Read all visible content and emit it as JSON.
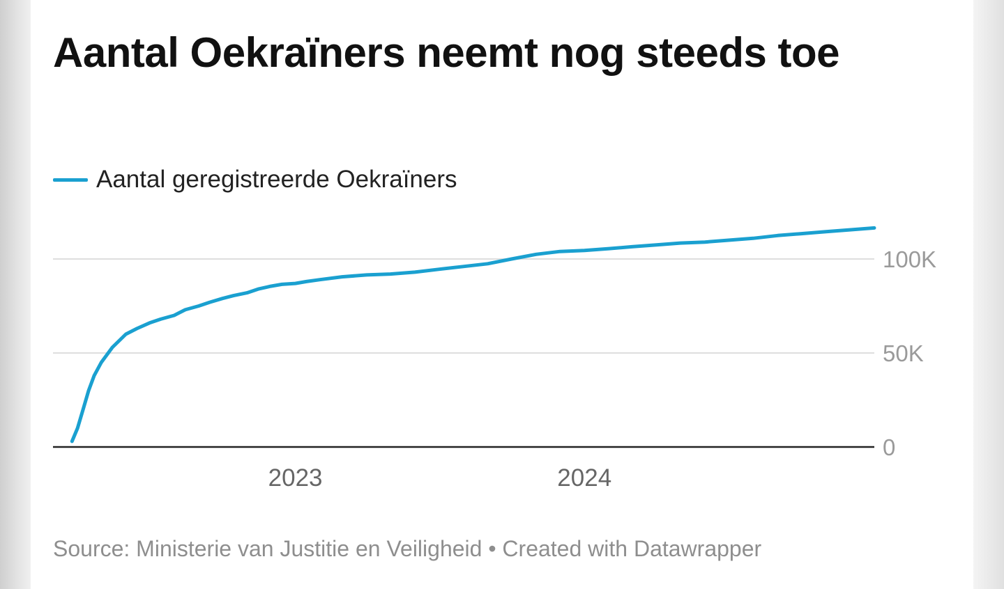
{
  "chart_data": {
    "type": "line",
    "title": "Aantal Oekraïners neemt nog steeds toe",
    "legend": [
      "Aantal geregistreerde Oekraïners"
    ],
    "legend_position": "top-left",
    "xlabel": "",
    "ylabel": "",
    "x_ticks": [
      "2023",
      "2024"
    ],
    "y_ticks": [
      "0",
      "50K",
      "100K"
    ],
    "ylim": [
      0,
      120000
    ],
    "grid": true,
    "series": [
      {
        "name": "Aantal geregistreerde Oekraïners",
        "color": "#1aa0d0",
        "x": [
          "2022-03-25",
          "2022-04-01",
          "2022-04-08",
          "2022-04-15",
          "2022-04-22",
          "2022-05-01",
          "2022-05-15",
          "2022-06-01",
          "2022-06-15",
          "2022-07-01",
          "2022-07-15",
          "2022-08-01",
          "2022-08-15",
          "2022-09-01",
          "2022-09-15",
          "2022-10-01",
          "2022-10-15",
          "2022-11-01",
          "2022-11-15",
          "2022-12-01",
          "2022-12-15",
          "2023-01-01",
          "2023-01-15",
          "2023-02-01",
          "2023-03-01",
          "2023-04-01",
          "2023-05-01",
          "2023-06-01",
          "2023-07-01",
          "2023-08-01",
          "2023-09-01",
          "2023-10-01",
          "2023-11-01",
          "2023-12-01",
          "2024-01-01",
          "2024-02-01",
          "2024-03-01",
          "2024-04-01",
          "2024-05-01",
          "2024-06-01",
          "2024-07-01",
          "2024-08-01",
          "2024-09-01",
          "2024-10-01",
          "2024-11-01",
          "2024-12-01",
          "2025-01-01"
        ],
        "values": [
          3000,
          10000,
          20000,
          30000,
          38000,
          45000,
          53000,
          60000,
          63000,
          66000,
          68000,
          70000,
          73000,
          75000,
          77000,
          79000,
          80500,
          82000,
          84000,
          85500,
          86500,
          87000,
          88000,
          89000,
          90500,
          91500,
          92000,
          93000,
          94500,
          96000,
          97500,
          100000,
          102500,
          104000,
          104500,
          105500,
          106500,
          107500,
          108500,
          109000,
          110000,
          111000,
          112500,
          113500,
          114500,
          115500,
          116500
        ]
      }
    ]
  },
  "source_text": "Source: Ministerie van Justitie en Veiligheid • Created with Datawrapper"
}
